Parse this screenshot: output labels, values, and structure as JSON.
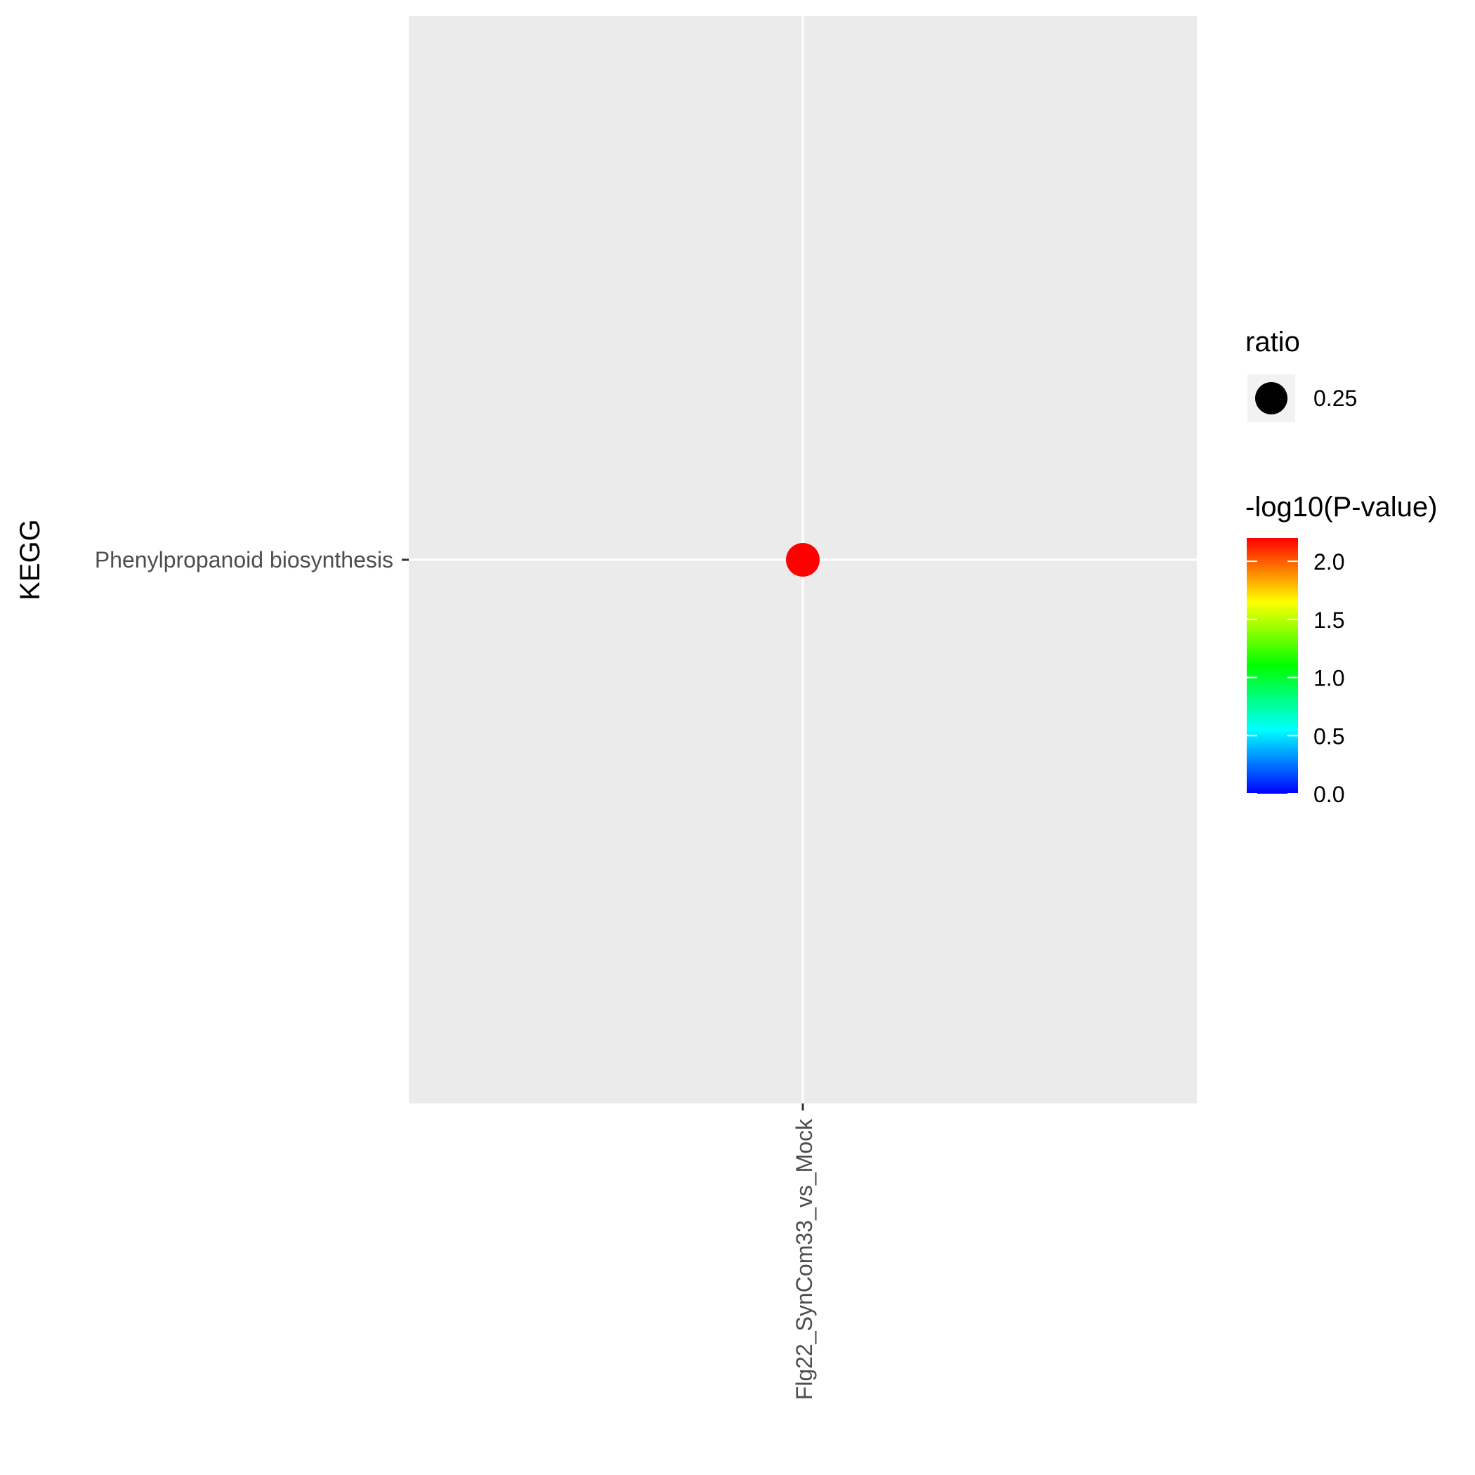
{
  "chart_data": {
    "type": "scatter",
    "title": "",
    "xlabel": "",
    "ylabel": "KEGG",
    "x_categories": [
      "Flg22_SynCom33_vs_Mock"
    ],
    "y_categories": [
      "Phenylpropanoid biosynthesis"
    ],
    "points": [
      {
        "x": "Flg22_SynCom33_vs_Mock",
        "y": "Phenylpropanoid biosynthesis",
        "ratio": 0.25,
        "neg_log10_p": 2.2,
        "color": "#ff0000"
      }
    ],
    "legend_size": {
      "title": "ratio",
      "entries": [
        {
          "value": 0.25,
          "label": "0.25"
        }
      ]
    },
    "legend_color": {
      "title": "-log10(P-value)",
      "min": 0.0,
      "max": 2.2,
      "ticks": [
        {
          "value": 0.0,
          "label": "0.0"
        },
        {
          "value": 0.5,
          "label": "0.5"
        },
        {
          "value": 1.0,
          "label": "1.0"
        },
        {
          "value": 1.5,
          "label": "1.5"
        },
        {
          "value": 2.0,
          "label": "2.0"
        }
      ],
      "palette": [
        "#0000ff",
        "#00ffff",
        "#00ff00",
        "#ffff00",
        "#ff0000"
      ]
    },
    "panel_background": "#ebebeb",
    "grid": true,
    "grid_color": "#ffffff",
    "legend_position": "right"
  }
}
